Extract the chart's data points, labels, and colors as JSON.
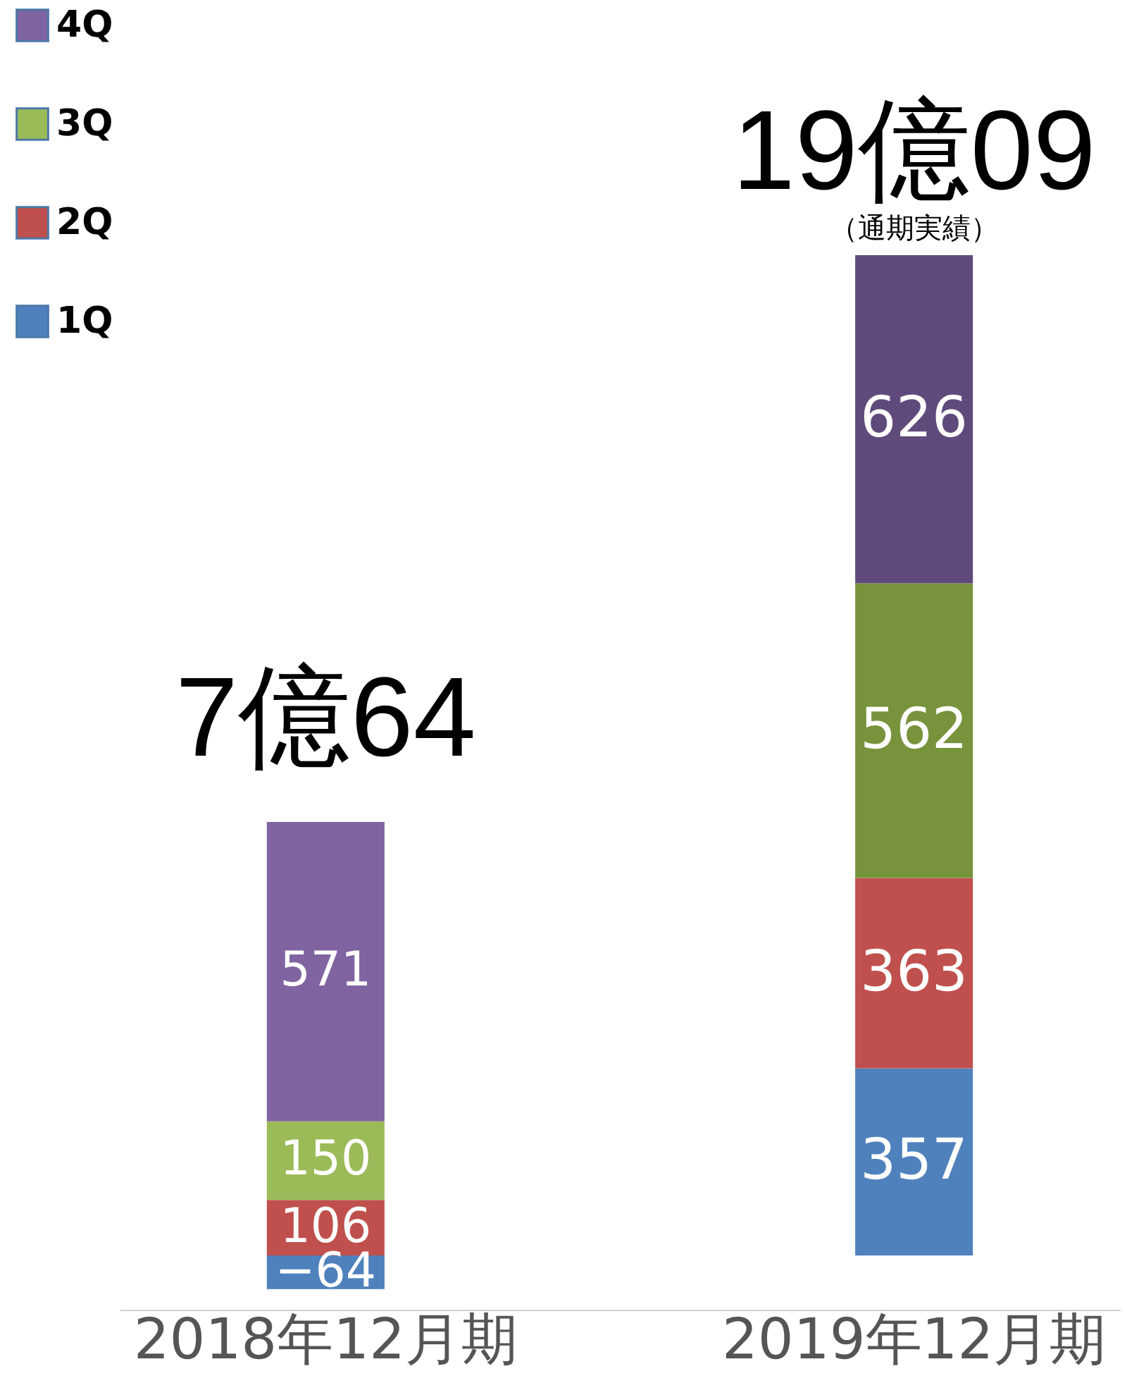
{
  "chart_data": {
    "type": "bar",
    "stacked": true,
    "categories": [
      "2018年12月期",
      "2019年12月期"
    ],
    "series": [
      {
        "name": "1Q",
        "colors": [
          "#4f81bd",
          "#4f81bd"
        ],
        "values": [
          -64,
          357
        ]
      },
      {
        "name": "2Q",
        "colors": [
          "#c0504d",
          "#c0504d"
        ],
        "values": [
          106,
          363
        ]
      },
      {
        "name": "3Q",
        "colors": [
          "#9bbb59",
          "#77933c"
        ],
        "values": [
          150,
          562
        ]
      },
      {
        "name": "4Q",
        "colors": [
          "#8064a2",
          "#604a7b"
        ],
        "values": [
          571,
          626
        ]
      }
    ],
    "data_labels": true,
    "totals": [
      "7億64",
      "19億09"
    ],
    "annotations": [
      {
        "text": "（通期実績）",
        "x": "2019年12月期",
        "y": 1909
      }
    ],
    "legend": "left"
  }
}
